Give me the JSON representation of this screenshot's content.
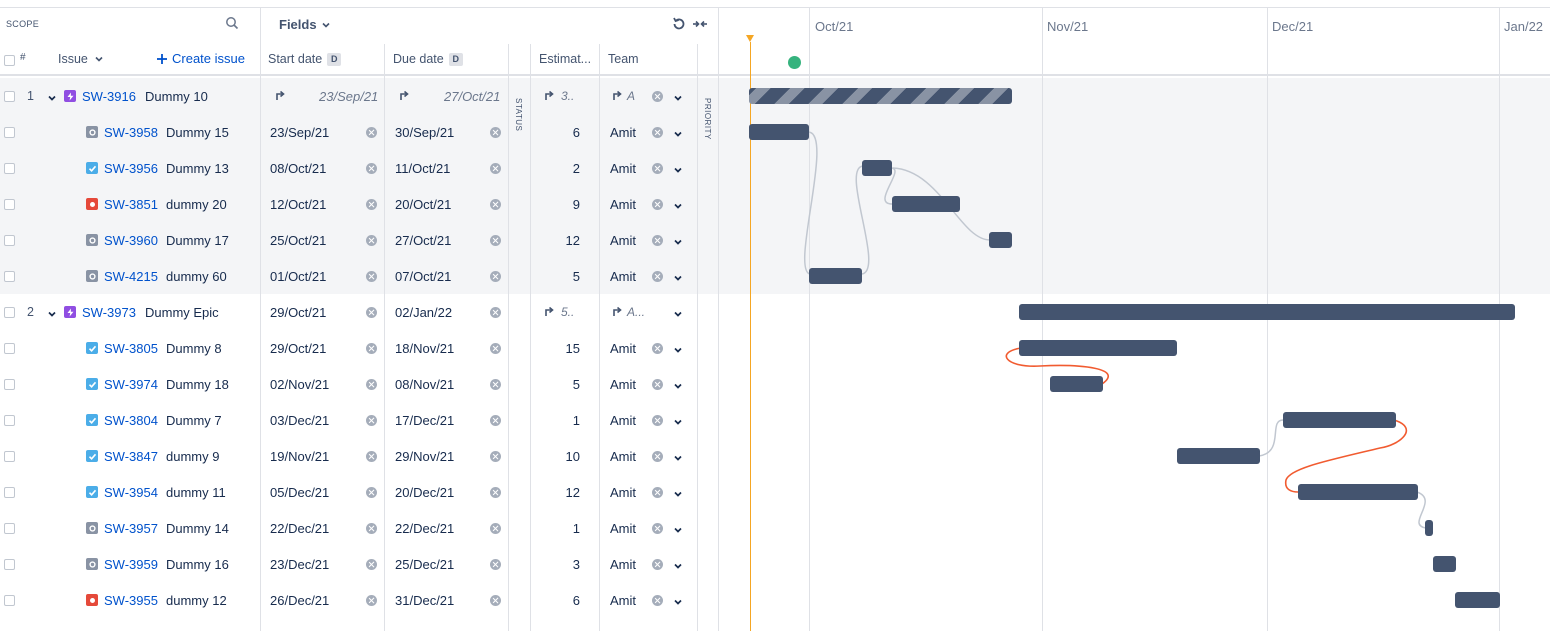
{
  "scope_label": "SCOPE",
  "fields_label": "Fields",
  "columns": {
    "hash": "#",
    "issue": "Issue",
    "create_issue": "Create issue",
    "start_date": "Start date",
    "due_date": "Due date",
    "date_badge": "D",
    "estimate": "Estimat...",
    "team": "Team",
    "status": "STATUS",
    "priority": "PRIORITY"
  },
  "months": [
    "Oct/21",
    "Nov/21",
    "Dec/21",
    "Jan/22"
  ],
  "rows": [
    {
      "num": "1",
      "type": "epic",
      "key": "SW-3916",
      "summary": "Dummy 10",
      "start": "23/Sep/21",
      "due": "27/Oct/21",
      "est": "3..",
      "team": "A",
      "parent": true
    },
    {
      "num": "",
      "type": "task-gray",
      "key": "SW-3958",
      "summary": "Dummy 15",
      "start": "23/Sep/21",
      "due": "30/Sep/21",
      "est": "6",
      "team": "Amit"
    },
    {
      "num": "",
      "type": "story",
      "key": "SW-3956",
      "summary": "Dummy 13",
      "start": "08/Oct/21",
      "due": "11/Oct/21",
      "est": "2",
      "team": "Amit"
    },
    {
      "num": "",
      "type": "bug",
      "key": "SW-3851",
      "summary": "dummy 20",
      "start": "12/Oct/21",
      "due": "20/Oct/21",
      "est": "9",
      "team": "Amit"
    },
    {
      "num": "",
      "type": "task-gray",
      "key": "SW-3960",
      "summary": "Dummy 17",
      "start": "25/Oct/21",
      "due": "27/Oct/21",
      "est": "12",
      "team": "Amit"
    },
    {
      "num": "",
      "type": "task-gray",
      "key": "SW-4215",
      "summary": "dummy 60",
      "start": "01/Oct/21",
      "due": "07/Oct/21",
      "est": "5",
      "team": "Amit"
    },
    {
      "num": "2",
      "type": "epic",
      "key": "SW-3973",
      "summary": "Dummy Epic",
      "start": "29/Oct/21",
      "due": "02/Jan/22",
      "est": "5..",
      "team": "A...",
      "parent": true
    },
    {
      "num": "",
      "type": "story",
      "key": "SW-3805",
      "summary": "Dummy 8",
      "start": "29/Oct/21",
      "due": "18/Nov/21",
      "est": "15",
      "team": "Amit"
    },
    {
      "num": "",
      "type": "story",
      "key": "SW-3974",
      "summary": "Dummy 18",
      "start": "02/Nov/21",
      "due": "08/Nov/21",
      "est": "5",
      "team": "Amit"
    },
    {
      "num": "",
      "type": "story",
      "key": "SW-3804",
      "summary": "Dummy 7",
      "start": "03/Dec/21",
      "due": "17/Dec/21",
      "est": "1",
      "team": "Amit"
    },
    {
      "num": "",
      "type": "story",
      "key": "SW-3847",
      "summary": "dummy 9",
      "start": "19/Nov/21",
      "due": "29/Nov/21",
      "est": "10",
      "team": "Amit"
    },
    {
      "num": "",
      "type": "story",
      "key": "SW-3954",
      "summary": "dummy 11",
      "start": "05/Dec/21",
      "due": "20/Dec/21",
      "est": "12",
      "team": "Amit"
    },
    {
      "num": "",
      "type": "task-gray",
      "key": "SW-3957",
      "summary": "Dummy 14",
      "start": "22/Dec/21",
      "due": "22/Dec/21",
      "est": "1",
      "team": "Amit"
    },
    {
      "num": "",
      "type": "task-gray",
      "key": "SW-3959",
      "summary": "Dummy 16",
      "start": "23/Dec/21",
      "due": "25/Dec/21",
      "est": "3",
      "team": "Amit"
    },
    {
      "num": "",
      "type": "bug",
      "key": "SW-3955",
      "summary": "dummy 12",
      "start": "26/Dec/21",
      "due": "31/Dec/21",
      "est": "6",
      "team": "Amit"
    }
  ],
  "colors": {
    "epic": "#904ee2",
    "story": "#4bade8",
    "bug": "#e5493a",
    "task-gray": "#8993a4",
    "bar": "#44546f",
    "link": "#c1c7d0",
    "link_conflict": "#f15b30",
    "today": "#f5a623",
    "release": "#36b37e"
  }
}
